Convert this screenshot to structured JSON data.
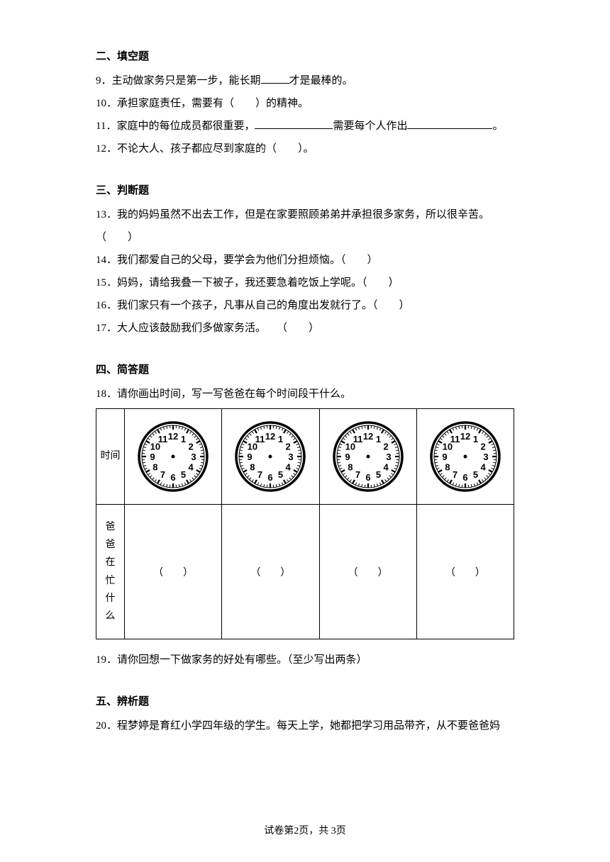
{
  "sections": {
    "s2": {
      "title": "二、填空题"
    },
    "s3": {
      "title": "三、判断题"
    },
    "s4": {
      "title": "四、简答题"
    },
    "s5": {
      "title": "五、辨析题"
    }
  },
  "fillblank": {
    "q9": {
      "num": "9．",
      "p1": "主动做家务只是第一步，能长期",
      "p2": "才是最棒的。"
    },
    "q10": {
      "num": "10．",
      "text": "承担家庭责任，需要有（　　）的精神。"
    },
    "q11": {
      "num": "11．",
      "p1": "家庭中的每位成员都很重要，",
      "p2": "需要每个人作出",
      "p3": "。"
    },
    "q12": {
      "num": "12．",
      "text": "不论大人、孩子都应尽到家庭的（　　）。"
    }
  },
  "judge": {
    "q13": {
      "num": "13．",
      "line1": "我的妈妈虽然不出去工作，但是在家要照顾弟弟并承担很多家务，所以很辛苦。",
      "line2": "（　　）"
    },
    "q14": {
      "num": "14．",
      "text": "我们都爱自己的父母，要学会为他们分担烦恼。（　　）"
    },
    "q15": {
      "num": "15．",
      "text": "妈妈，请给我叠一下被子，我还要急着吃饭上学呢。（　　）"
    },
    "q16": {
      "num": "16．",
      "text": "我们家只有一个孩子，凡事从自己的角度出发就行了。（　　）"
    },
    "q17": {
      "num": "17．",
      "text": "大人应该鼓励我们多做家务活。　　（　　）"
    }
  },
  "short": {
    "q18": {
      "num": "18．",
      "text": "请你画出时间，写一写爸爸在每个时间段干什么。"
    },
    "q19": {
      "num": "19．",
      "text": "请你回想一下做家务的好处有哪些。（至少写出两条）"
    },
    "table": {
      "header1": "时间",
      "header2_l1": "爸",
      "header2_l2": "爸",
      "header2_l3": "在",
      "header2_l4": "忙",
      "header2_l5": "什",
      "header2_l6": "么",
      "answer": "（　　）"
    }
  },
  "analyze": {
    "q20": {
      "num": "20．",
      "text": "程梦婷是育红小学四年级的学生。每天上学，她都把学习用品带齐，从不要爸爸妈"
    }
  },
  "clock": {
    "face_color": "#ffffff",
    "border_color": "#000000",
    "numbers": [
      "12",
      "1",
      "2",
      "3",
      "4",
      "5",
      "6",
      "7",
      "8",
      "9",
      "10",
      "11"
    ]
  },
  "footer": {
    "text": "试卷第2页，共 3页"
  }
}
